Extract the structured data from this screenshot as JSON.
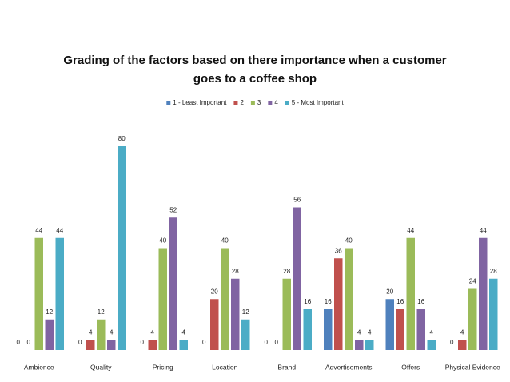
{
  "chart_data": {
    "type": "bar",
    "title": "Grading of the factors based on there importance when a customer goes to a coffee shop",
    "categories": [
      "Ambience",
      "Quality",
      "Pricing",
      "Location",
      "Brand",
      "Advertisements",
      "Offers",
      "Physical Evidence"
    ],
    "series": [
      {
        "name": "1 - Least Important",
        "color": "#4f81bd",
        "values": [
          0,
          0,
          0,
          0,
          0,
          16,
          20,
          0
        ]
      },
      {
        "name": "2",
        "color": "#c0504d",
        "values": [
          0,
          4,
          4,
          20,
          0,
          36,
          16,
          4
        ]
      },
      {
        "name": "3",
        "color": "#9bbb59",
        "values": [
          44,
          12,
          40,
          40,
          28,
          40,
          44,
          24
        ]
      },
      {
        "name": "4",
        "color": "#8064a2",
        "values": [
          12,
          4,
          52,
          28,
          56,
          4,
          16,
          44
        ]
      },
      {
        "name": "5 - Most Important",
        "color": "#4bacc6",
        "values": [
          44,
          80,
          4,
          12,
          16,
          4,
          4,
          28
        ]
      }
    ],
    "legend": "top"
  }
}
